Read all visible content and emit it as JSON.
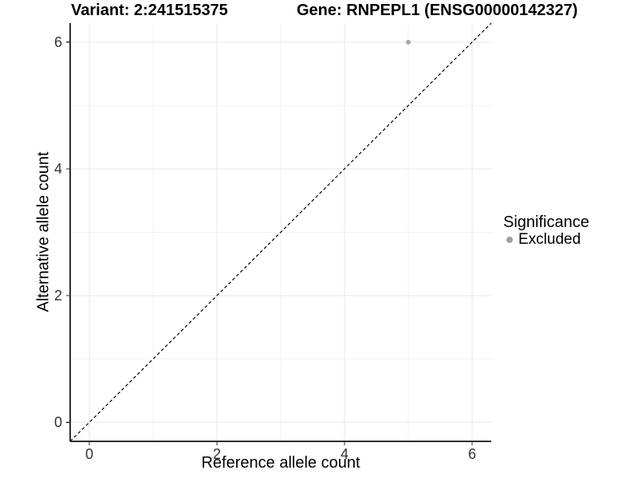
{
  "titles": {
    "variant": "Variant: 2:241515375",
    "gene": "Gene: RNPEPL1 (ENSG00000142327)"
  },
  "chart_data": {
    "type": "scatter",
    "title_left": "Variant: 2:241515375",
    "title_right": "Gene: RNPEPL1 (ENSG00000142327)",
    "xlabel": "Reference allele count",
    "ylabel": "Alternative allele count",
    "xlim": [
      -0.3,
      6.3
    ],
    "ylim": [
      -0.3,
      6.3
    ],
    "xticks": [
      0,
      2,
      4,
      6
    ],
    "yticks": [
      0,
      2,
      4,
      6
    ],
    "xminor": [
      1,
      3,
      5
    ],
    "yminor": [
      1,
      3,
      5
    ],
    "grid": true,
    "identity_line": {
      "style": "dashed",
      "color": "#000000",
      "from": [
        -0.3,
        -0.3
      ],
      "to": [
        6.3,
        6.3
      ]
    },
    "series": [
      {
        "name": "Excluded",
        "color": "#a9a9a9",
        "points": [
          [
            5,
            6
          ]
        ]
      }
    ],
    "legend": {
      "title": "Significance",
      "position": "right",
      "items": [
        {
          "label": "Excluded",
          "color": "#a0a0a0"
        }
      ]
    }
  },
  "colors": {
    "background": "#ffffff",
    "grid_major": "#e7e7e7",
    "grid_minor": "#f2f2f2",
    "axis_line": "#2e2e2e",
    "tick_label": "#333333",
    "title_text": "#000000"
  }
}
